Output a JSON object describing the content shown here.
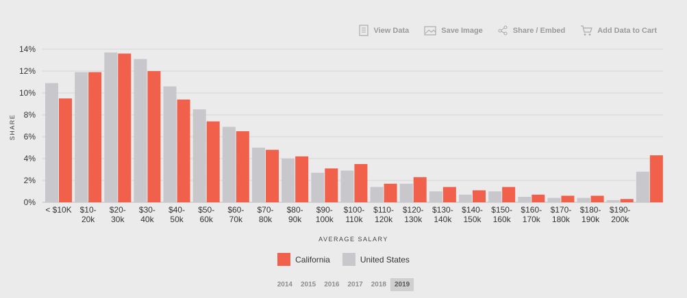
{
  "toolbar": {
    "view_data": "View Data",
    "save_image": "Save Image",
    "share_embed": "Share / Embed",
    "add_to_cart": "Add Data to Cart"
  },
  "years": [
    "2014",
    "2015",
    "2016",
    "2017",
    "2018",
    "2019"
  ],
  "selected_year": "2019",
  "colors": {
    "california": "#f0604a",
    "united_states": "#c8c8cc"
  },
  "chart_data": {
    "type": "bar",
    "xlabel": "AVERAGE SALARY",
    "ylabel": "SHARE",
    "ylim": [
      0,
      14
    ],
    "yticks": [
      "0%",
      "2%",
      "4%",
      "6%",
      "8%",
      "10%",
      "12%",
      "14%"
    ],
    "categories": [
      [
        "< $10K",
        ""
      ],
      [
        "$10-",
        "20k"
      ],
      [
        "$20-",
        "30k"
      ],
      [
        "$30-",
        "40k"
      ],
      [
        "$40-",
        "50k"
      ],
      [
        "$50-",
        "60k"
      ],
      [
        "$60-",
        "70k"
      ],
      [
        "$70-",
        "80k"
      ],
      [
        "$80-",
        "90k"
      ],
      [
        "$90-",
        "100k"
      ],
      [
        "$100-",
        "110k"
      ],
      [
        "$110-",
        "120k"
      ],
      [
        "$120-",
        "130k"
      ],
      [
        "$130-",
        "140k"
      ],
      [
        "$140-",
        "150k"
      ],
      [
        "$150-",
        "160k"
      ],
      [
        "$160-",
        "170k"
      ],
      [
        "$170-",
        "180k"
      ],
      [
        "$180-",
        "190k"
      ],
      [
        "$190-",
        "200k"
      ],
      [
        "",
        ""
      ]
    ],
    "series": [
      {
        "name": "United States",
        "color": "#c8c8cc",
        "values": [
          10.9,
          11.9,
          13.7,
          13.1,
          10.6,
          8.5,
          6.9,
          5.0,
          4.0,
          2.7,
          2.9,
          1.4,
          1.7,
          1.0,
          0.7,
          1.0,
          0.5,
          0.4,
          0.4,
          0.2,
          2.8
        ]
      },
      {
        "name": "California",
        "color": "#f0604a",
        "values": [
          9.5,
          11.9,
          13.6,
          12.0,
          9.4,
          7.4,
          6.5,
          4.8,
          4.2,
          3.1,
          3.5,
          1.7,
          2.3,
          1.4,
          1.1,
          1.4,
          0.7,
          0.6,
          0.6,
          0.3,
          4.3
        ]
      }
    ]
  }
}
